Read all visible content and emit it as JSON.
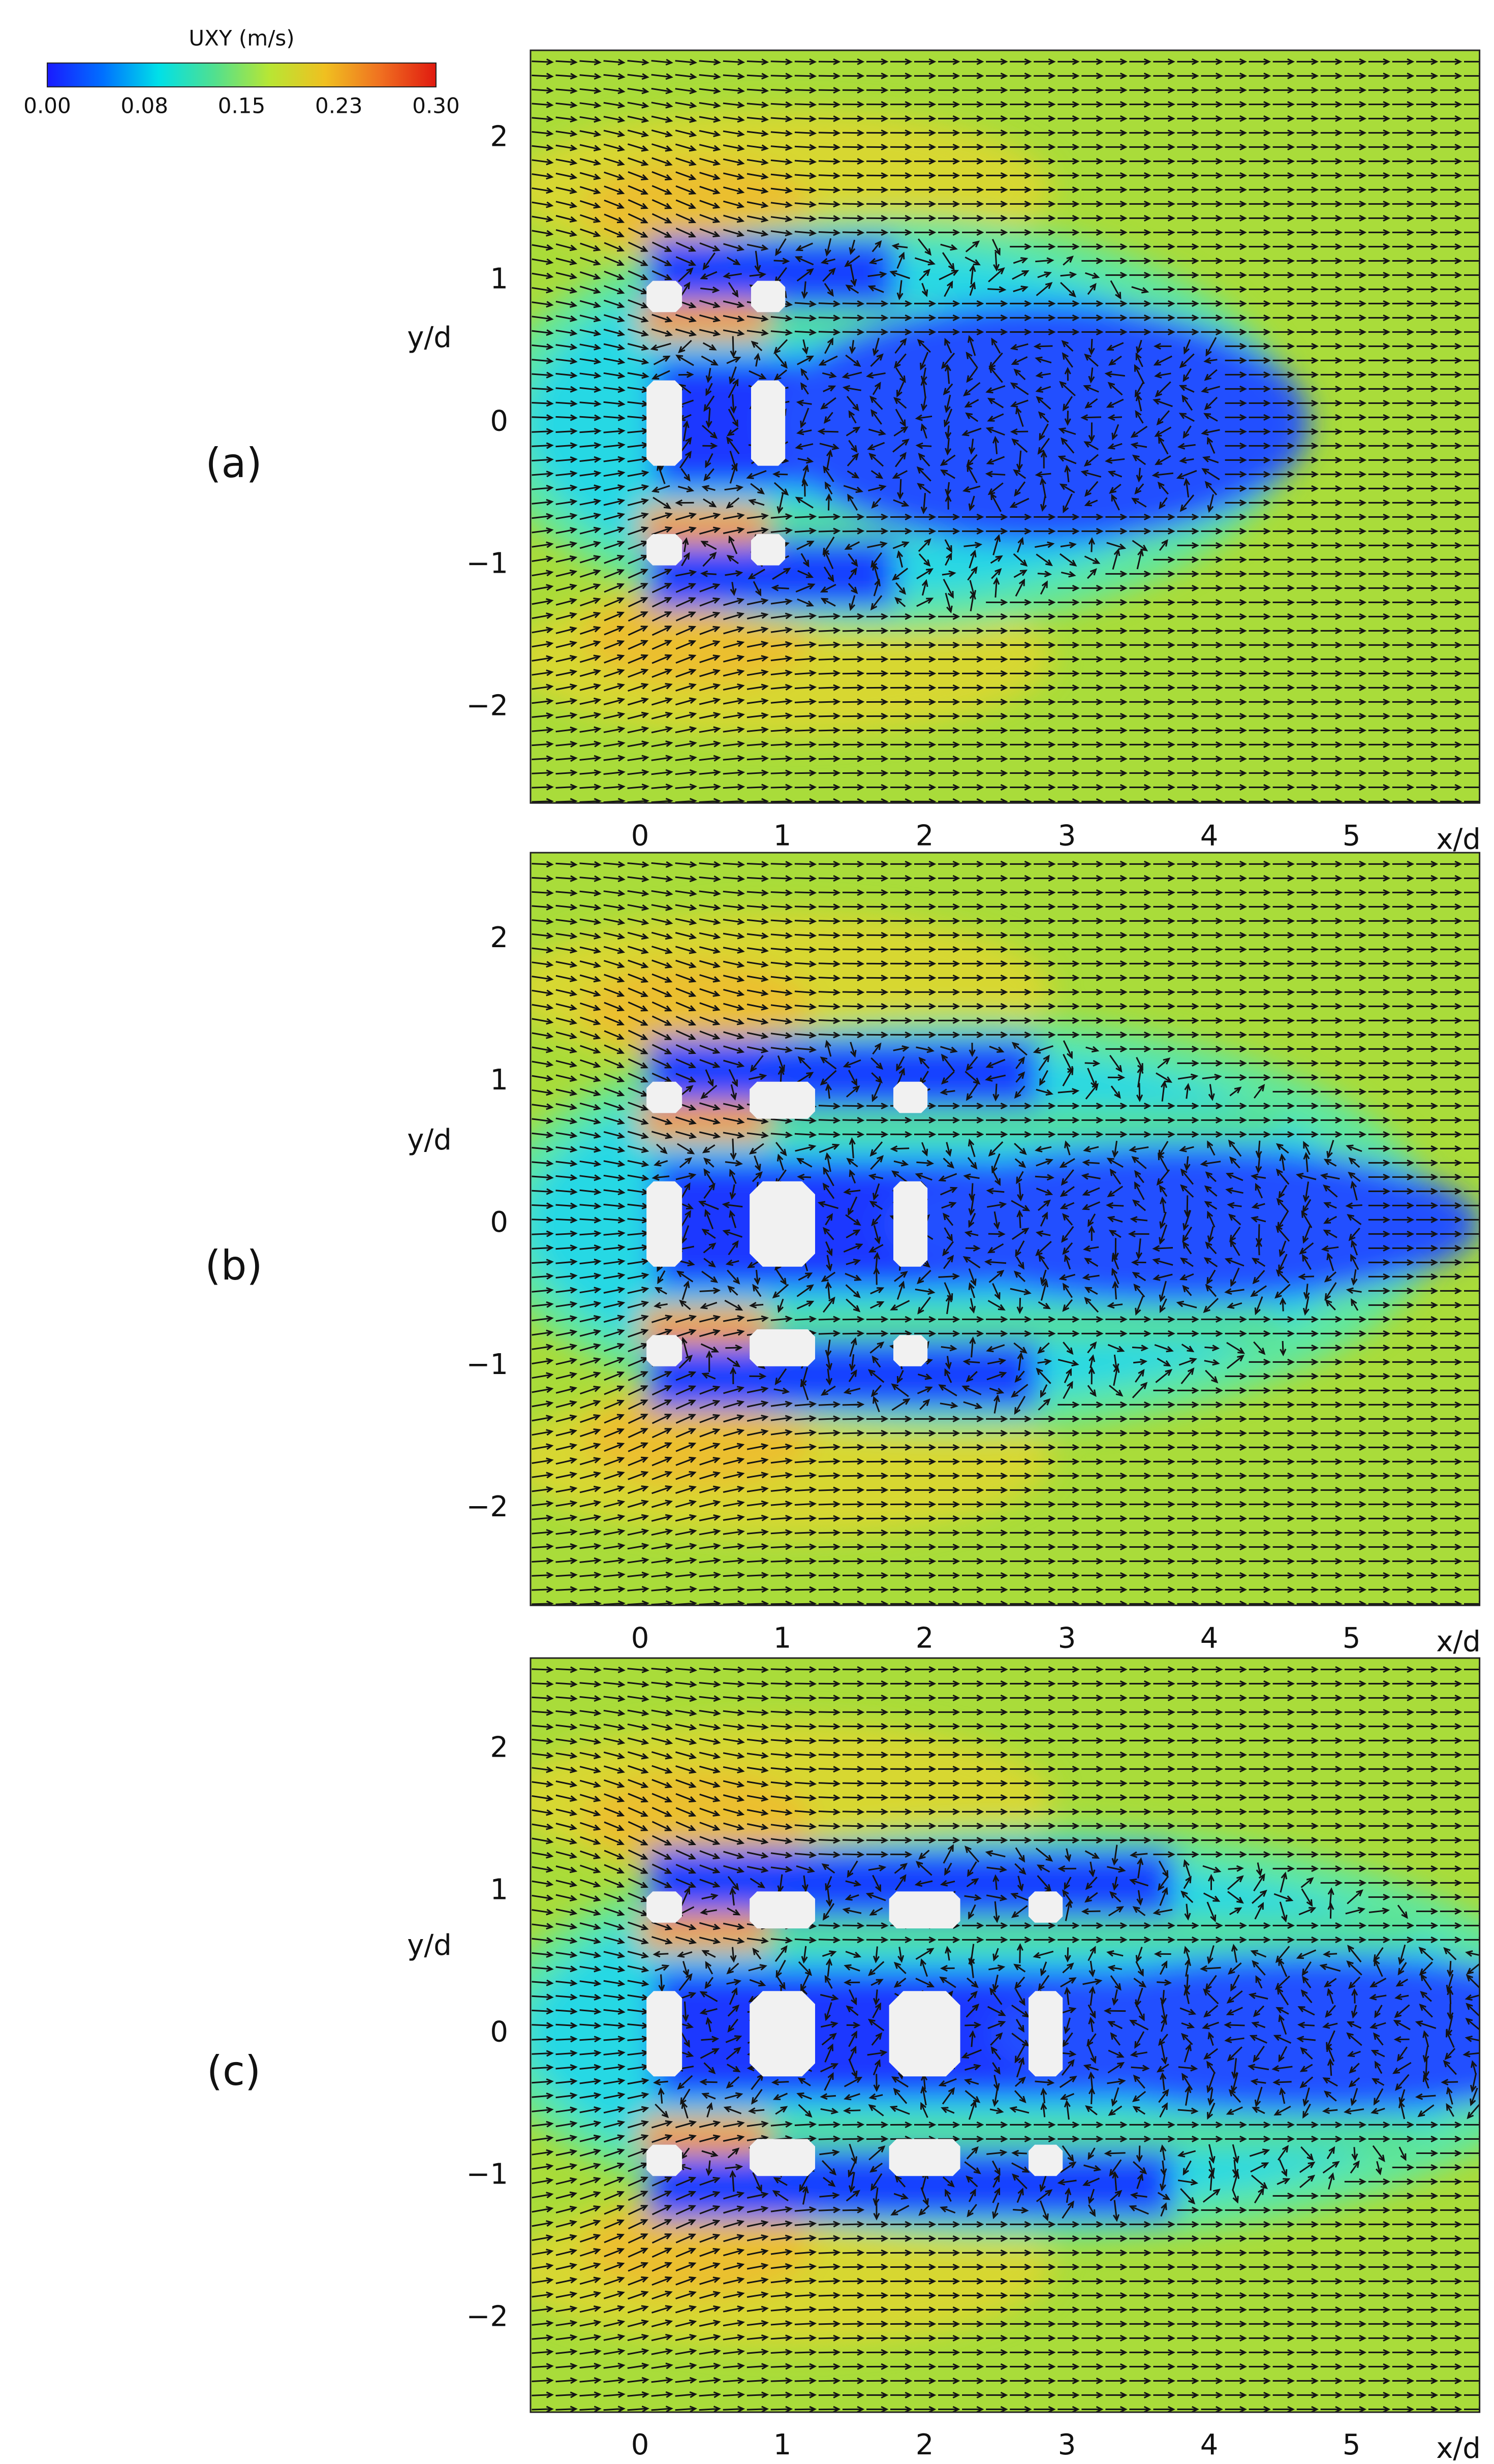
{
  "chart_data": [
    {
      "type": "colorbar",
      "title": "UXY (m/s)",
      "xlim": [
        0,
        0.3
      ],
      "xticks": [
        {
          "value": 0,
          "label": "0.00"
        },
        {
          "value": 0.075,
          "label": "0.08"
        },
        {
          "value": 0.15,
          "label": "0.15"
        },
        {
          "value": 0.225,
          "label": "0.23"
        },
        {
          "value": 0.3,
          "label": "0.30"
        }
      ],
      "colors": [
        "#1a1aff",
        "#0070ff",
        "#00e0e8",
        "#50e090",
        "#b8e634",
        "#f0c020",
        "#f07020",
        "#e01a10"
      ]
    },
    {
      "type": "vector-field",
      "panel_label": "(a)",
      "xlabel": "x/d",
      "ylabel": "y/d",
      "xlim": [
        -0.77,
        5.9
      ],
      "ylim": [
        -2.67,
        2.62
      ],
      "xticks": [
        0,
        1,
        2,
        3,
        4,
        5
      ],
      "yticks": [
        {
          "value": -2,
          "label": "−2"
        },
        {
          "value": -1,
          "label": "−1"
        },
        0,
        1,
        2
      ]
    },
    {
      "type": "vector-field",
      "panel_label": "(b)",
      "xlabel": "x/d",
      "ylabel": "y/d",
      "xlim": [
        -0.77,
        5.9
      ],
      "ylim": [
        -2.68,
        2.61
      ],
      "xticks": [
        0,
        1,
        2,
        3,
        4,
        5
      ],
      "yticks": [
        {
          "value": -2,
          "label": "−2"
        },
        {
          "value": -1,
          "label": "−1"
        },
        0,
        1,
        2
      ]
    },
    {
      "type": "vector-field",
      "panel_label": "(c)",
      "xlabel": "x/d",
      "ylabel": "y/d",
      "xlim": [
        -0.77,
        5.9
      ],
      "ylim": [
        -2.66,
        2.64
      ],
      "xticks": [
        0,
        1,
        2,
        3,
        4,
        5
      ],
      "yticks": [
        {
          "value": -2,
          "label": "−2"
        },
        {
          "value": -1,
          "label": "−1"
        },
        0,
        1,
        2
      ]
    }
  ]
}
